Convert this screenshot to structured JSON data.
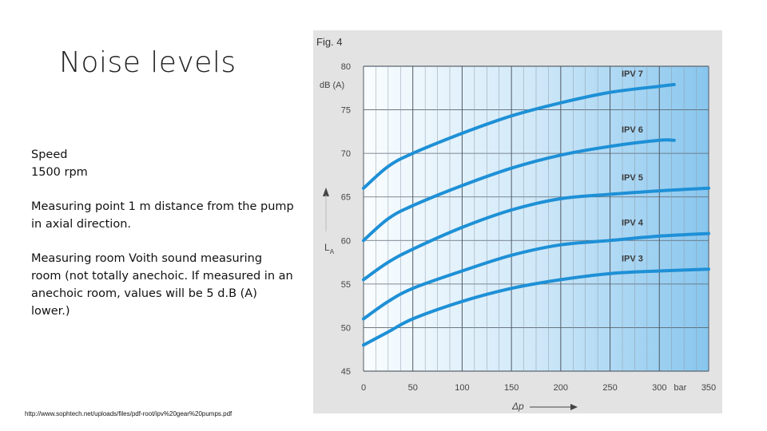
{
  "slide": {
    "title": "Noise levels",
    "speed_label": "Speed",
    "speed_value": "1500 rpm",
    "measuring_point": "Measuring point 1 m distance from the pump in axial direction.",
    "measuring_room": "Measuring room Voith sound measuring room (not totally anechoic. If measured in an anechoic room, values will be 5 d.B (A) lower.)",
    "source_url": "http://www.sophtech.net/uploads/files/pdf-root/ipv%20gear%20pumps.pdf"
  },
  "chart_data": {
    "type": "line",
    "title": "Fig. 4",
    "ylabel": "L_A",
    "yunit": "dB (A)",
    "xlabel": "Δp",
    "xunit": "bar",
    "xlim": [
      0,
      350
    ],
    "ylim": [
      45,
      80
    ],
    "xticks": [
      0,
      50,
      100,
      150,
      200,
      250,
      300,
      350
    ],
    "yticks": [
      45,
      50,
      55,
      60,
      65,
      70,
      75,
      80
    ],
    "grid": true,
    "colors": {
      "line": "#1e90d6",
      "axis_text": "#444444"
    },
    "series": [
      {
        "name": "IPV 7",
        "x": [
          0,
          25,
          50,
          100,
          150,
          200,
          250,
          300,
          315
        ],
        "y": [
          66.0,
          68.5,
          70.0,
          72.3,
          74.3,
          75.8,
          77.0,
          77.7,
          77.9
        ]
      },
      {
        "name": "IPV 6",
        "x": [
          0,
          25,
          50,
          100,
          150,
          200,
          250,
          300,
          315
        ],
        "y": [
          60.0,
          62.5,
          64.0,
          66.3,
          68.3,
          69.8,
          70.8,
          71.5,
          71.5
        ]
      },
      {
        "name": "IPV 5",
        "x": [
          0,
          25,
          50,
          100,
          150,
          200,
          250,
          300,
          350
        ],
        "y": [
          55.5,
          57.5,
          59.0,
          61.5,
          63.5,
          64.8,
          65.3,
          65.7,
          66.0
        ]
      },
      {
        "name": "IPV 4",
        "x": [
          0,
          25,
          50,
          100,
          150,
          200,
          250,
          300,
          350
        ],
        "y": [
          51.0,
          53.0,
          54.5,
          56.5,
          58.3,
          59.5,
          60.0,
          60.5,
          60.8
        ]
      },
      {
        "name": "IPV 3",
        "x": [
          0,
          25,
          50,
          100,
          150,
          200,
          250,
          300,
          350
        ],
        "y": [
          48.0,
          49.5,
          51.0,
          53.0,
          54.5,
          55.5,
          56.2,
          56.5,
          56.7
        ]
      }
    ]
  }
}
